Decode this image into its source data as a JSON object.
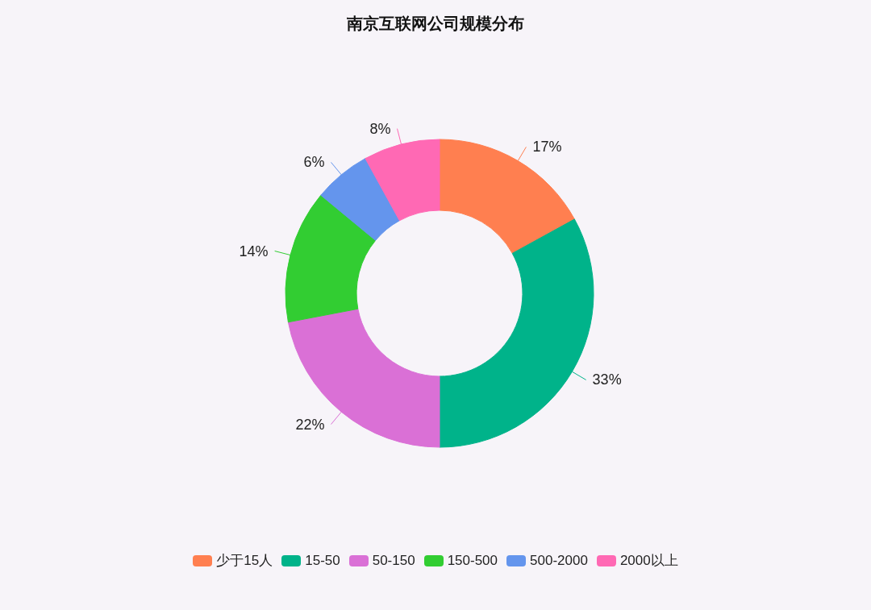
{
  "chart_data": {
    "type": "donut",
    "title": "南京互联网公司规模分布",
    "categories": [
      "少于15人",
      "15-50",
      "50-150",
      "150-500",
      "500-2000",
      "2000以上"
    ],
    "values": [
      17,
      33,
      22,
      14,
      6,
      8
    ],
    "value_labels": [
      "17%",
      "33%",
      "22%",
      "14%",
      "6%",
      "8%"
    ],
    "colors": [
      "#ff7f50",
      "#00b38a",
      "#da70d6",
      "#32cd32",
      "#6495ed",
      "#ff69b4"
    ],
    "legend": "bottom"
  }
}
